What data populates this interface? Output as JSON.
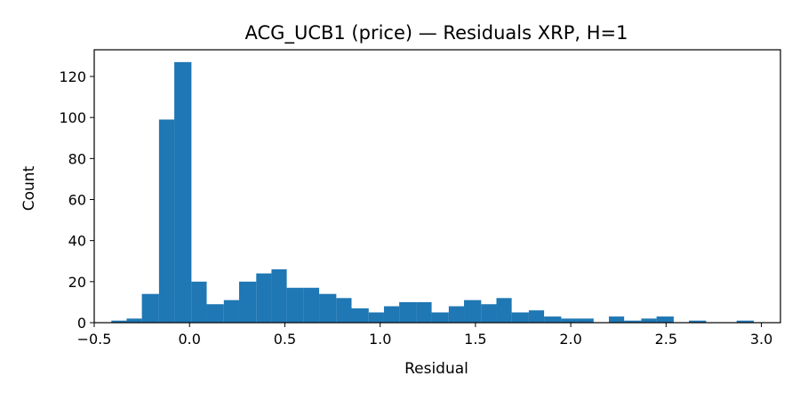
{
  "chart_data": {
    "type": "histogram",
    "title": "ACG_UCB1 (price) — Residuals XRP, H=1",
    "xlabel": "Residual",
    "ylabel": "Count",
    "xlim": [
      -0.5,
      3.1
    ],
    "ylim": [
      0,
      133
    ],
    "xticks": [
      -0.5,
      0.0,
      0.5,
      1.0,
      1.5,
      2.0,
      2.5,
      3.0
    ],
    "xtick_labels": [
      "−0.5",
      "0.0",
      "0.5",
      "1.0",
      "1.5",
      "2.0",
      "2.5",
      "3.0"
    ],
    "yticks": [
      0,
      20,
      40,
      60,
      80,
      100,
      120
    ],
    "ytick_labels": [
      "0",
      "20",
      "40",
      "60",
      "80",
      "100",
      "120"
    ],
    "bar_color": "#1f77b4",
    "grid": false,
    "bins": [
      {
        "x0": -0.41,
        "x1": -0.33,
        "count": 1
      },
      {
        "x0": -0.33,
        "x1": -0.25,
        "count": 2
      },
      {
        "x0": -0.25,
        "x1": -0.16,
        "count": 14
      },
      {
        "x0": -0.16,
        "x1": -0.08,
        "count": 99
      },
      {
        "x0": -0.08,
        "x1": 0.01,
        "count": 127
      },
      {
        "x0": 0.01,
        "x1": 0.09,
        "count": 20
      },
      {
        "x0": 0.09,
        "x1": 0.18,
        "count": 9
      },
      {
        "x0": 0.18,
        "x1": 0.26,
        "count": 11
      },
      {
        "x0": 0.26,
        "x1": 0.35,
        "count": 20
      },
      {
        "x0": 0.35,
        "x1": 0.43,
        "count": 24
      },
      {
        "x0": 0.43,
        "x1": 0.51,
        "count": 26
      },
      {
        "x0": 0.51,
        "x1": 0.6,
        "count": 17
      },
      {
        "x0": 0.6,
        "x1": 0.68,
        "count": 17
      },
      {
        "x0": 0.68,
        "x1": 0.77,
        "count": 14
      },
      {
        "x0": 0.77,
        "x1": 0.85,
        "count": 12
      },
      {
        "x0": 0.85,
        "x1": 0.94,
        "count": 7
      },
      {
        "x0": 0.94,
        "x1": 1.02,
        "count": 5
      },
      {
        "x0": 1.02,
        "x1": 1.1,
        "count": 8
      },
      {
        "x0": 1.1,
        "x1": 1.19,
        "count": 10
      },
      {
        "x0": 1.19,
        "x1": 1.27,
        "count": 10
      },
      {
        "x0": 1.27,
        "x1": 1.36,
        "count": 5
      },
      {
        "x0": 1.36,
        "x1": 1.44,
        "count": 8
      },
      {
        "x0": 1.44,
        "x1": 1.53,
        "count": 11
      },
      {
        "x0": 1.53,
        "x1": 1.61,
        "count": 9
      },
      {
        "x0": 1.61,
        "x1": 1.69,
        "count": 12
      },
      {
        "x0": 1.69,
        "x1": 1.78,
        "count": 5
      },
      {
        "x0": 1.78,
        "x1": 1.86,
        "count": 6
      },
      {
        "x0": 1.86,
        "x1": 1.95,
        "count": 3
      },
      {
        "x0": 1.95,
        "x1": 2.03,
        "count": 2
      },
      {
        "x0": 2.03,
        "x1": 2.12,
        "count": 2
      },
      {
        "x0": 2.12,
        "x1": 2.2,
        "count": 0
      },
      {
        "x0": 2.2,
        "x1": 2.28,
        "count": 3
      },
      {
        "x0": 2.28,
        "x1": 2.37,
        "count": 1
      },
      {
        "x0": 2.37,
        "x1": 2.45,
        "count": 2
      },
      {
        "x0": 2.45,
        "x1": 2.54,
        "count": 3
      },
      {
        "x0": 2.54,
        "x1": 2.62,
        "count": 0
      },
      {
        "x0": 2.62,
        "x1": 2.71,
        "count": 1
      },
      {
        "x0": 2.71,
        "x1": 2.79,
        "count": 0
      },
      {
        "x0": 2.79,
        "x1": 2.87,
        "count": 0
      },
      {
        "x0": 2.87,
        "x1": 2.96,
        "count": 1
      }
    ]
  }
}
